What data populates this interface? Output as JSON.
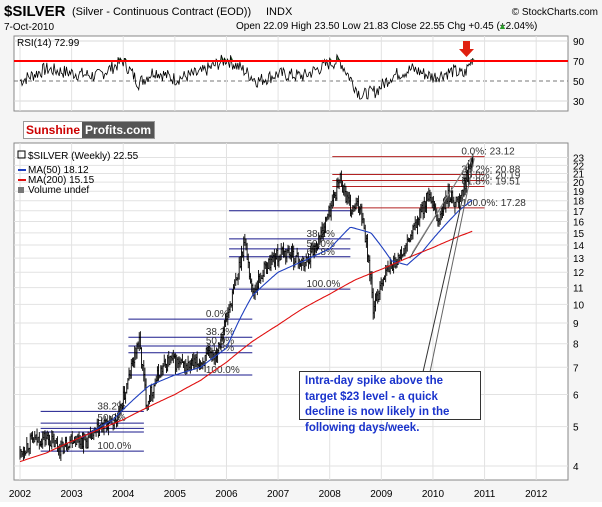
{
  "header": {
    "symbol": "$SILVER",
    "description": "(Silver - Continuous Contract (EOD))",
    "exchange": "INDX",
    "watermark": "© StockCharts.com",
    "date": "7-Oct-2010",
    "ohlc": "Open 22.09  High 23.50  Low 21.83  Close 22.55  Chg +0.45 (+2.04%)",
    "up_arrow": "▲"
  },
  "rsi_panel": {
    "label": "RSI(14) 72.99",
    "ticks": [
      "90",
      "70",
      "50",
      "30"
    ]
  },
  "logo": {
    "part1": "Sunshine",
    "part2": "Profits.com"
  },
  "legend": {
    "main": "$SILVER (Weekly) 22.55",
    "ma50": "MA(50) 18.12",
    "ma200": "MA(200) 15.15",
    "volume": "Volume undef"
  },
  "annotation": "Intra-day spike above the target $23 level - a quick decline is now likely in the following days/week.",
  "colors": {
    "rsi_line": "#000000",
    "overbought_line": "#ff0000",
    "ma50": "#1f3fbf",
    "ma200": "#e01010",
    "fib_red": "#b22222",
    "fib_blue": "#1a1a8c",
    "annotation_text": "#1a33cc",
    "arrow": "#e02010"
  },
  "fib_labels": {
    "top": [
      "0.0%: 23.12",
      "38.2%: 20.88",
      "50.0%: 20.19",
      "61.8%: 19.51",
      "100.0%: 17.28"
    ],
    "mid": [
      "38.2%",
      "50.0%",
      "61.8%",
      "100.0%"
    ],
    "r2004": [
      "0.0%",
      "38.2%",
      "50.0%",
      "61.8%",
      "100.0%"
    ],
    "r2002": [
      "38.2%",
      "50.0%",
      "100.0%"
    ]
  },
  "chart_data": [
    {
      "type": "line",
      "title": "RSI(14) 72.99",
      "ylim": [
        20,
        95
      ],
      "yticks": [
        90,
        70,
        50,
        30
      ],
      "reference_lines": [
        70
      ],
      "x": [
        2002.0,
        2002.5,
        2003.0,
        2003.5,
        2004.0,
        2004.3,
        2004.6,
        2005.0,
        2005.5,
        2006.0,
        2006.3,
        2006.6,
        2007.0,
        2007.5,
        2008.0,
        2008.2,
        2008.6,
        2008.9,
        2009.2,
        2009.6,
        2010.0,
        2010.4,
        2010.6,
        2010.77
      ],
      "values": [
        50,
        62,
        58,
        55,
        70,
        48,
        60,
        52,
        58,
        72,
        62,
        50,
        57,
        55,
        68,
        70,
        35,
        40,
        55,
        62,
        54,
        60,
        56,
        73
      ]
    },
    {
      "type": "line",
      "title": "$SILVER (Weekly) 22.55",
      "x_range": [
        2002.0,
        2012.5
      ],
      "xticks": [
        "2002",
        "2003",
        "2004",
        "2005",
        "2006",
        "2007",
        "2008",
        "2009",
        "2010",
        "2011",
        "2012"
      ],
      "scale": "log",
      "ylim": [
        3.8,
        24
      ],
      "yticks": [
        4,
        5,
        6,
        7,
        8,
        9,
        10,
        11,
        12,
        13,
        14,
        15,
        16,
        17,
        18,
        19,
        20,
        21,
        22,
        23
      ],
      "series": [
        {
          "name": "$SILVER (Weekly) 22.55",
          "x": [
            2002.0,
            2002.2,
            2002.5,
            2002.8,
            2003.0,
            2003.3,
            2003.6,
            2003.9,
            2004.1,
            2004.3,
            2004.45,
            2004.7,
            2004.9,
            2005.2,
            2005.5,
            2005.8,
            2006.0,
            2006.2,
            2006.35,
            2006.5,
            2006.7,
            2006.9,
            2007.2,
            2007.5,
            2007.8,
            2008.0,
            2008.2,
            2008.4,
            2008.6,
            2008.75,
            2008.85,
            2009.0,
            2009.2,
            2009.45,
            2009.7,
            2009.9,
            2010.1,
            2010.3,
            2010.5,
            2010.65,
            2010.77
          ],
          "values": [
            4.3,
            4.6,
            4.7,
            4.4,
            4.7,
            4.6,
            5.0,
            5.2,
            6.5,
            8.2,
            5.7,
            6.8,
            7.3,
            7.0,
            7.2,
            7.6,
            9.2,
            11.5,
            14.5,
            10.6,
            12.0,
            13.0,
            13.5,
            12.5,
            14.5,
            17.0,
            20.5,
            17.0,
            17.5,
            13.0,
            9.5,
            11.5,
            12.5,
            13.5,
            16.0,
            18.5,
            16.0,
            18.5,
            17.8,
            20.5,
            22.55
          ]
        },
        {
          "name": "MA(50) 18.12",
          "x": [
            2003.2,
            2003.8,
            2004.5,
            2005.0,
            2005.5,
            2006.0,
            2006.5,
            2007.0,
            2007.5,
            2008.0,
            2008.4,
            2008.8,
            2009.2,
            2009.5,
            2009.8,
            2010.2,
            2010.5,
            2010.77
          ],
          "values": [
            4.7,
            5.2,
            6.3,
            6.7,
            7.0,
            7.8,
            10.5,
            12.0,
            12.8,
            13.7,
            15.5,
            15.0,
            12.8,
            12.5,
            13.5,
            15.5,
            17.0,
            18.12
          ]
        },
        {
          "name": "MA(200) 15.15",
          "x": [
            2002.0,
            2002.5,
            2003.0,
            2003.5,
            2004.0,
            2004.5,
            2005.0,
            2005.5,
            2006.0,
            2006.5,
            2007.0,
            2007.5,
            2008.0,
            2008.5,
            2009.0,
            2009.5,
            2010.0,
            2010.5,
            2010.77
          ],
          "values": [
            4.1,
            4.3,
            4.6,
            4.9,
            5.2,
            5.6,
            6.0,
            6.5,
            7.2,
            8.1,
            8.9,
            9.8,
            10.6,
            11.5,
            12.2,
            13.0,
            13.8,
            14.7,
            15.15
          ]
        }
      ]
    }
  ]
}
